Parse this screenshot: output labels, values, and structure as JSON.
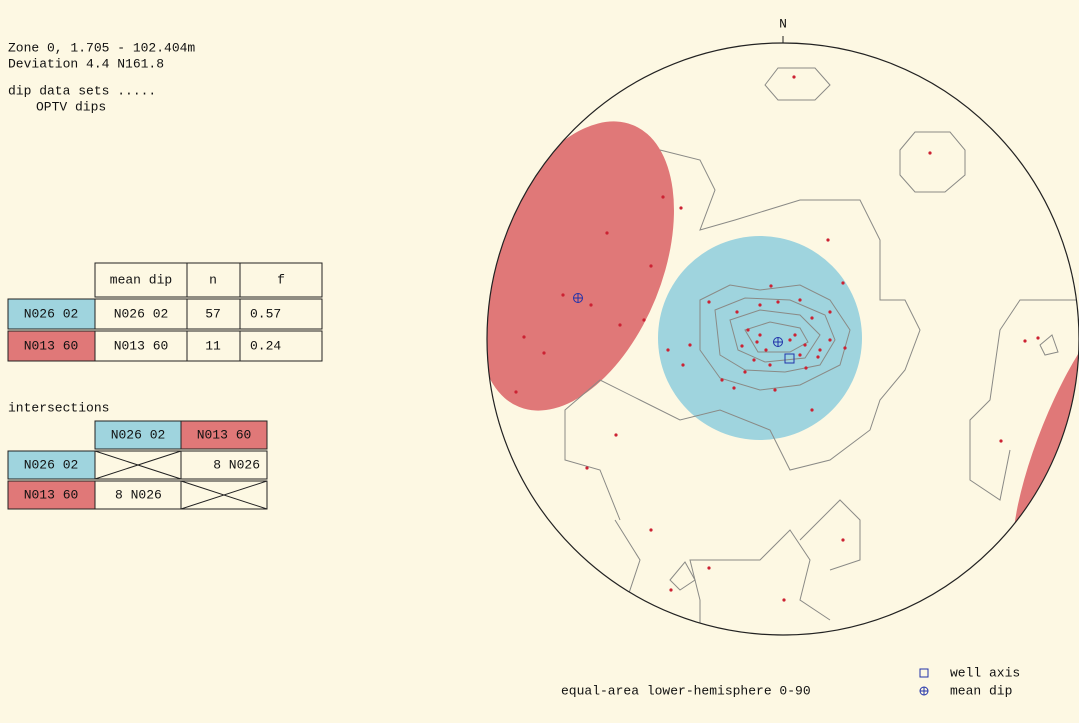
{
  "header": {
    "lines": [
      "Zone 0, 1.705 - 102.404m",
      "Deviation  4.4 N161.8",
      "dip data sets .....",
      "OPTV dips"
    ]
  },
  "sets_table": {
    "columns": [
      "mean dip",
      "n",
      "f"
    ],
    "rows": [
      {
        "label": "N026 02",
        "mean_dip": "N026 02",
        "n": 57,
        "f": 0.57
      },
      {
        "label": "N013 60",
        "mean_dip": "N013 60",
        "n": 11,
        "f": 0.24
      }
    ]
  },
  "intersections": {
    "title": "intersections",
    "columns": [
      "N026 02",
      "N013 60"
    ],
    "rows": [
      {
        "label": "N026 02",
        "value": "8 N026"
      },
      {
        "label": "N013 60",
        "value": "8 N026"
      }
    ]
  },
  "stereonet": {
    "north": "N",
    "caption": "equal-area  lower-hemisphere  0-90",
    "legend": [
      "well axis",
      "mean dip"
    ]
  }
}
